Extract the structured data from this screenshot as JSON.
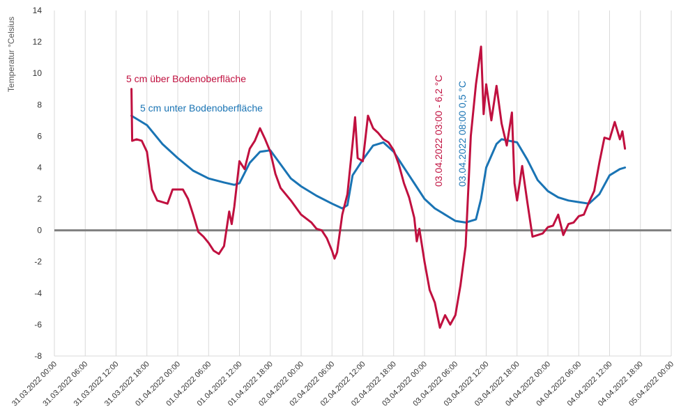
{
  "chart_data": {
    "type": "line",
    "title": "",
    "ylabel": "Temperatur °Celsius",
    "xlabel": "",
    "ylim": [
      -8,
      14
    ],
    "yticks": [
      -8,
      -6,
      -4,
      -2,
      0,
      2,
      4,
      6,
      8,
      10,
      12,
      14
    ],
    "xlim_hours": [
      0,
      120
    ],
    "x_tick_labels": [
      "31.03.2022 00:00",
      "31.03.2022 06:00",
      "31.03.2022 12:00",
      "31.03.2022 18:00",
      "01.04.2022 00:00",
      "01.04.2022 06:00",
      "01.04.2022 12:00",
      "01.04.2022 18:00",
      "02.04.2022 00:00",
      "02.04.2022 06:00",
      "02.04.2022 12:00",
      "02.04.2022 18:00",
      "03.04.2022 00:00",
      "03.04.2022 06:00",
      "03.04.2022 12:00",
      "03.04.2022 18:00",
      "04.04.2022 00:00",
      "04.04.2022 06:00",
      "04.04.2022 12:00",
      "04.04.2022 18:00",
      "05.04.2022 00:00"
    ],
    "grid": "vertical",
    "zero_line": true,
    "series": [
      {
        "name": "5 cm über Bodenoberfläche",
        "color": "#c0103f",
        "points": [
          [
            "31.03.2022 15:00",
            9.0
          ],
          [
            "31.03.2022 15:08",
            5.7
          ],
          [
            "31.03.2022 16:00",
            5.8
          ],
          [
            "31.03.2022 17:00",
            5.7
          ],
          [
            "31.03.2022 18:00",
            5.0
          ],
          [
            "31.03.2022 19:00",
            2.6
          ],
          [
            "31.03.2022 20:00",
            1.9
          ],
          [
            "31.03.2022 22:00",
            1.7
          ],
          [
            "31.03.2022 23:00",
            2.6
          ],
          [
            "01.04.2022 00:00",
            2.6
          ],
          [
            "01.04.2022 01:00",
            2.6
          ],
          [
            "01.04.2022 02:00",
            2.0
          ],
          [
            "01.04.2022 03:00",
            1.0
          ],
          [
            "01.04.2022 04:00",
            -0.1
          ],
          [
            "01.04.2022 05:00",
            -0.4
          ],
          [
            "01.04.2022 06:00",
            -0.8
          ],
          [
            "01.04.2022 07:00",
            -1.3
          ],
          [
            "01.04.2022 08:00",
            -1.5
          ],
          [
            "01.04.2022 09:00",
            -1.0
          ],
          [
            "01.04.2022 10:00",
            1.2
          ],
          [
            "01.04.2022 10:30",
            0.4
          ],
          [
            "01.04.2022 11:00",
            1.5
          ],
          [
            "01.04.2022 12:00",
            4.4
          ],
          [
            "01.04.2022 13:00",
            3.9
          ],
          [
            "01.04.2022 14:00",
            5.2
          ],
          [
            "01.04.2022 15:00",
            5.7
          ],
          [
            "01.04.2022 16:00",
            6.5
          ],
          [
            "01.04.2022 17:00",
            5.8
          ],
          [
            "01.04.2022 18:00",
            5.0
          ],
          [
            "01.04.2022 19:00",
            3.6
          ],
          [
            "01.04.2022 20:00",
            2.7
          ],
          [
            "01.04.2022 22:00",
            1.9
          ],
          [
            "02.04.2022 00:00",
            1.0
          ],
          [
            "02.04.2022 02:00",
            0.5
          ],
          [
            "02.04.2022 03:00",
            0.1
          ],
          [
            "02.04.2022 04:00",
            0.0
          ],
          [
            "02.04.2022 05:00",
            -0.5
          ],
          [
            "02.04.2022 06:00",
            -1.3
          ],
          [
            "02.04.2022 06:30",
            -1.8
          ],
          [
            "02.04.2022 07:00",
            -1.4
          ],
          [
            "02.04.2022 08:00",
            1.0
          ],
          [
            "02.04.2022 09:00",
            2.3
          ],
          [
            "02.04.2022 10:00",
            5.5
          ],
          [
            "02.04.2022 10:30",
            7.2
          ],
          [
            "02.04.2022 11:00",
            4.6
          ],
          [
            "02.04.2022 12:00",
            4.4
          ],
          [
            "02.04.2022 13:00",
            7.3
          ],
          [
            "02.04.2022 14:00",
            6.5
          ],
          [
            "02.04.2022 15:00",
            6.2
          ],
          [
            "02.04.2022 16:00",
            5.8
          ],
          [
            "02.04.2022 17:00",
            5.6
          ],
          [
            "02.04.2022 18:00",
            5.1
          ],
          [
            "02.04.2022 19:00",
            4.2
          ],
          [
            "02.04.2022 20:00",
            3.0
          ],
          [
            "02.04.2022 21:00",
            2.1
          ],
          [
            "02.04.2022 22:00",
            0.8
          ],
          [
            "02.04.2022 22:30",
            -0.7
          ],
          [
            "02.04.2022 23:00",
            0.1
          ],
          [
            "03.04.2022 00:00",
            -2.0
          ],
          [
            "03.04.2022 01:00",
            -3.8
          ],
          [
            "03.04.2022 02:00",
            -4.6
          ],
          [
            "03.04.2022 03:00",
            -6.2
          ],
          [
            "03.04.2022 04:00",
            -5.4
          ],
          [
            "03.04.2022 05:00",
            -6.0
          ],
          [
            "03.04.2022 06:00",
            -5.4
          ],
          [
            "03.04.2022 07:00",
            -3.5
          ],
          [
            "03.04.2022 08:00",
            -1.0
          ],
          [
            "03.04.2022 09:00",
            6.0
          ],
          [
            "03.04.2022 10:00",
            9.3
          ],
          [
            "03.04.2022 11:00",
            11.7
          ],
          [
            "03.04.2022 11:30",
            7.4
          ],
          [
            "03.04.2022 12:00",
            9.3
          ],
          [
            "03.04.2022 13:00",
            7.0
          ],
          [
            "03.04.2022 14:00",
            9.2
          ],
          [
            "03.04.2022 15:00",
            6.8
          ],
          [
            "03.04.2022 16:00",
            5.4
          ],
          [
            "03.04.2022 17:00",
            7.5
          ],
          [
            "03.04.2022 17:30",
            3.0
          ],
          [
            "03.04.2022 18:00",
            1.9
          ],
          [
            "03.04.2022 19:00",
            4.1
          ],
          [
            "03.04.2022 20:00",
            1.8
          ],
          [
            "03.04.2022 21:00",
            -0.4
          ],
          [
            "03.04.2022 22:00",
            -0.3
          ],
          [
            "03.04.2022 23:00",
            -0.2
          ],
          [
            "04.04.2022 00:00",
            0.2
          ],
          [
            "04.04.2022 01:00",
            0.3
          ],
          [
            "04.04.2022 02:00",
            1.0
          ],
          [
            "04.04.2022 03:00",
            -0.3
          ],
          [
            "04.04.2022 04:00",
            0.4
          ],
          [
            "04.04.2022 05:00",
            0.5
          ],
          [
            "04.04.2022 06:00",
            0.9
          ],
          [
            "04.04.2022 07:00",
            1.0
          ],
          [
            "04.04.2022 08:00",
            1.8
          ],
          [
            "04.04.2022 09:00",
            2.5
          ],
          [
            "04.04.2022 10:00",
            4.3
          ],
          [
            "04.04.2022 11:00",
            5.9
          ],
          [
            "04.04.2022 12:00",
            5.8
          ],
          [
            "04.04.2022 13:00",
            6.9
          ],
          [
            "04.04.2022 14:00",
            5.8
          ],
          [
            "04.04.2022 14:30",
            6.3
          ],
          [
            "04.04.2022 15:00",
            5.2
          ]
        ]
      },
      {
        "name": "5 cm unter Bodenoberfläche",
        "color": "#1a74b4",
        "points": [
          [
            "31.03.2022 15:00",
            7.3
          ],
          [
            "31.03.2022 18:00",
            6.7
          ],
          [
            "31.03.2022 21:00",
            5.5
          ],
          [
            "01.04.2022 00:00",
            4.6
          ],
          [
            "01.04.2022 03:00",
            3.8
          ],
          [
            "01.04.2022 06:00",
            3.3
          ],
          [
            "01.04.2022 09:00",
            3.05
          ],
          [
            "01.04.2022 11:00",
            2.9
          ],
          [
            "01.04.2022 12:00",
            3.0
          ],
          [
            "01.04.2022 14:00",
            4.3
          ],
          [
            "01.04.2022 16:00",
            5.0
          ],
          [
            "01.04.2022 18:00",
            5.1
          ],
          [
            "01.04.2022 20:00",
            4.2
          ],
          [
            "01.04.2022 22:00",
            3.3
          ],
          [
            "02.04.2022 00:00",
            2.8
          ],
          [
            "02.04.2022 03:00",
            2.2
          ],
          [
            "02.04.2022 06:00",
            1.7
          ],
          [
            "02.04.2022 08:00",
            1.4
          ],
          [
            "02.04.2022 09:00",
            1.6
          ],
          [
            "02.04.2022 10:00",
            3.5
          ],
          [
            "02.04.2022 12:00",
            4.5
          ],
          [
            "02.04.2022 14:00",
            5.4
          ],
          [
            "02.04.2022 16:00",
            5.6
          ],
          [
            "02.04.2022 18:00",
            5.0
          ],
          [
            "02.04.2022 20:00",
            4.0
          ],
          [
            "02.04.2022 22:00",
            3.0
          ],
          [
            "03.04.2022 00:00",
            2.0
          ],
          [
            "03.04.2022 02:00",
            1.4
          ],
          [
            "03.04.2022 05:00",
            0.8
          ],
          [
            "03.04.2022 06:00",
            0.6
          ],
          [
            "03.04.2022 08:00",
            0.5
          ],
          [
            "03.04.2022 10:00",
            0.7
          ],
          [
            "03.04.2022 11:00",
            2.0
          ],
          [
            "03.04.2022 12:00",
            4.0
          ],
          [
            "03.04.2022 14:00",
            5.5
          ],
          [
            "03.04.2022 15:00",
            5.8
          ],
          [
            "03.04.2022 18:00",
            5.6
          ],
          [
            "03.04.2022 20:00",
            4.5
          ],
          [
            "03.04.2022 22:00",
            3.2
          ],
          [
            "04.04.2022 00:00",
            2.5
          ],
          [
            "04.04.2022 02:00",
            2.1
          ],
          [
            "04.04.2022 04:00",
            1.9
          ],
          [
            "04.04.2022 06:00",
            1.8
          ],
          [
            "04.04.2022 08:00",
            1.7
          ],
          [
            "04.04.2022 10:00",
            2.3
          ],
          [
            "04.04.2022 12:00",
            3.5
          ],
          [
            "04.04.2022 14:00",
            3.9
          ],
          [
            "04.04.2022 15:00",
            4.0
          ]
        ]
      }
    ],
    "annotations": [
      {
        "text": "03.04.2022  03:00  - 6,2 °C",
        "color": "#c0103f"
      },
      {
        "text": "03.04.2022  08:00  0,5 °C",
        "color": "#1a74b4"
      }
    ]
  }
}
